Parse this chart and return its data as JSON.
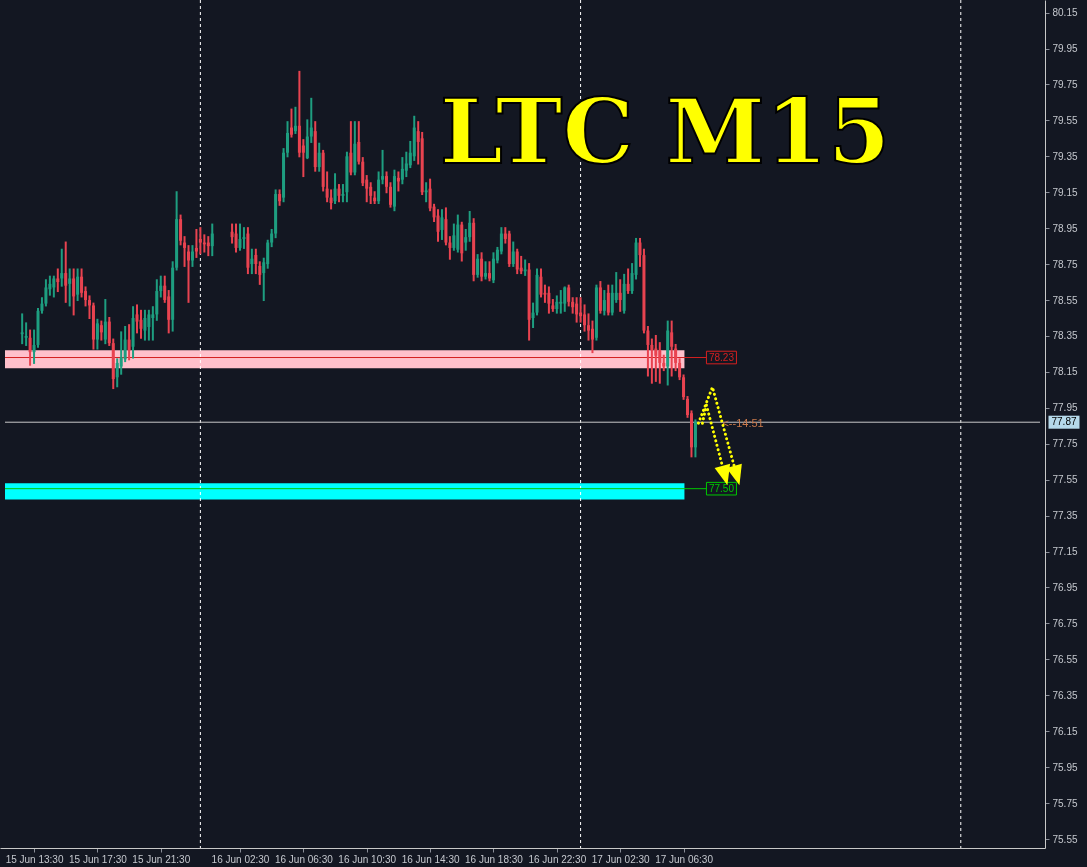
{
  "chart_data": {
    "type": "candlestick",
    "title": "LTC M15",
    "x": [
      "--06-15T12:45",
      "--06-15T13:00",
      "--06-15T13:15",
      "--06-15T13:30",
      "--06-15T13:45",
      "--06-15T14:00",
      "--06-15T14:15",
      "--06-15T14:30",
      "--06-15T14:45",
      "--06-15T15:00",
      "--06-15T15:15",
      "--06-15T15:30",
      "--06-15T15:45",
      "--06-15T16:00",
      "--06-15T16:15",
      "--06-15T16:30",
      "--06-15T16:45",
      "--06-15T17:00",
      "--06-15T17:15",
      "--06-15T17:30",
      "--06-15T17:45",
      "--06-15T18:00",
      "--06-15T18:15",
      "--06-15T18:30",
      "--06-15T18:45",
      "--06-15T19:00",
      "--06-15T19:15",
      "--06-15T19:30",
      "--06-15T19:45",
      "--06-15T20:00",
      "--06-15T20:15",
      "--06-15T20:30",
      "--06-15T20:45",
      "--06-15T21:00",
      "--06-15T21:15",
      "--06-15T21:30",
      "--06-15T21:45",
      "--06-15T22:00",
      "--06-15T22:15",
      "--06-15T22:30",
      "--06-15T22:45",
      "--06-15T23:00",
      "--06-15T23:15",
      "--06-15T23:30",
      "--06-15T23:45",
      "--06-16T00:00",
      "--06-16T00:15",
      "--06-16T00:30",
      "--06-16T00:45",
      "--06-16T02:00",
      "--06-16T02:15",
      "--06-16T02:30",
      "--06-16T02:45",
      "--06-16T03:00",
      "--06-16T03:15",
      "--06-16T03:30",
      "--06-16T03:45",
      "--06-16T04:00",
      "--06-16T04:15",
      "--06-16T04:30",
      "--06-16T04:45",
      "--06-16T05:00",
      "--06-16T05:15",
      "--06-16T05:30",
      "--06-16T05:45",
      "--06-16T06:00",
      "--06-16T06:15",
      "--06-16T06:30",
      "--06-16T06:45",
      "--06-16T07:00",
      "--06-16T07:15",
      "--06-16T07:30",
      "--06-16T07:45",
      "--06-16T08:00",
      "--06-16T08:15",
      "--06-16T08:30",
      "--06-16T08:45",
      "--06-16T09:00",
      "--06-16T09:15",
      "--06-16T09:30",
      "--06-16T09:45",
      "--06-16T10:00",
      "--06-16T10:15",
      "--06-16T10:30",
      "--06-16T10:45",
      "--06-16T11:00",
      "--06-16T11:15",
      "--06-16T11:30",
      "--06-16T11:45",
      "--06-16T12:00",
      "--06-16T12:15",
      "--06-16T12:30",
      "--06-16T12:45",
      "--06-16T13:00",
      "--06-16T13:15",
      "--06-16T13:30",
      "--06-16T13:45",
      "--06-16T14:00",
      "--06-16T14:15",
      "--06-16T14:30",
      "--06-16T14:45",
      "--06-16T15:00",
      "--06-16T15:15",
      "--06-16T15:30",
      "--06-16T15:45",
      "--06-16T16:00",
      "--06-16T16:15",
      "--06-16T16:30",
      "--06-16T16:45",
      "--06-16T17:00",
      "--06-16T17:15",
      "--06-16T17:30",
      "--06-16T17:45",
      "--06-16T18:00",
      "--06-16T18:15",
      "--06-16T18:30",
      "--06-16T18:45",
      "--06-16T19:00",
      "--06-16T19:15",
      "--06-16T19:30",
      "--06-16T19:45",
      "--06-16T20:00",
      "--06-16T20:15",
      "--06-16T20:30",
      "--06-16T20:45",
      "--06-16T21:00",
      "--06-16T21:15",
      "--06-16T21:30",
      "--06-16T21:45",
      "--06-16T22:00",
      "--06-16T22:15",
      "--06-16T22:30",
      "--06-16T22:45",
      "--06-16T23:00",
      "--06-16T23:15",
      "--06-16T23:30",
      "--06-16T23:45",
      "--06-17T00:00",
      "--06-17T00:15",
      "--06-17T00:30",
      "--06-17T00:45",
      "--06-17T01:00",
      "--06-17T01:15",
      "--06-17T01:30",
      "--06-17T01:45",
      "--06-17T02:00",
      "--06-17T02:15",
      "--06-17T02:30",
      "--06-17T02:45",
      "--06-17T03:00",
      "--06-17T03:15",
      "--06-17T03:30",
      "--06-17T03:45",
      "--06-17T04:00",
      "--06-17T04:15",
      "--06-17T04:30",
      "--06-17T04:45",
      "--06-17T05:00",
      "--06-17T05:15",
      "--06-17T05:30",
      "--06-17T05:45",
      "--06-17T06:00",
      "--06-17T06:15",
      "--06-17T06:30",
      "--06-17T06:45",
      "--06-17T07:00",
      "--06-17T07:15"
    ],
    "ohlc": [
      [
        78.36,
        78.47,
        78.31,
        78.37
      ],
      [
        78.34,
        78.42,
        78.3,
        78.35
      ],
      [
        78.34,
        78.38,
        78.19,
        78.26
      ],
      [
        78.26,
        78.38,
        78.2,
        78.3
      ],
      [
        78.3,
        78.5,
        78.29,
        78.49
      ],
      [
        78.49,
        78.56,
        78.48,
        78.53
      ],
      [
        78.53,
        78.66,
        78.52,
        78.62
      ],
      [
        78.61,
        78.68,
        78.58,
        78.64
      ],
      [
        78.62,
        78.68,
        78.57,
        78.67
      ],
      [
        78.67,
        78.72,
        78.6,
        78.65
      ],
      [
        78.67,
        78.83,
        78.63,
        78.7
      ],
      [
        78.7,
        78.87,
        78.54,
        78.63
      ],
      [
        78.64,
        78.72,
        78.52,
        78.67
      ],
      [
        78.67,
        78.72,
        78.47,
        78.57
      ],
      [
        78.58,
        78.72,
        78.55,
        78.68
      ],
      [
        78.68,
        78.72,
        78.57,
        78.59
      ],
      [
        78.6,
        78.62,
        78.52,
        78.55
      ],
      [
        78.55,
        78.57,
        78.45,
        78.52
      ],
      [
        78.52,
        78.53,
        78.28,
        78.33
      ],
      [
        78.33,
        78.44,
        78.28,
        78.42
      ],
      [
        78.41,
        78.43,
        78.33,
        78.37
      ],
      [
        78.33,
        78.55,
        78.31,
        78.43
      ],
      [
        78.43,
        78.45,
        78.3,
        78.31
      ],
      [
        78.31,
        78.33,
        78.06,
        78.11
      ],
      [
        78.12,
        78.22,
        78.07,
        78.2
      ],
      [
        78.18,
        78.37,
        78.14,
        78.23
      ],
      [
        78.22,
        78.4,
        78.21,
        78.33
      ],
      [
        78.33,
        78.41,
        78.22,
        78.27
      ],
      [
        78.29,
        78.51,
        78.23,
        78.45
      ],
      [
        78.47,
        78.52,
        78.37,
        78.43
      ],
      [
        78.44,
        78.49,
        78.34,
        78.39
      ],
      [
        78.38,
        78.49,
        78.33,
        78.45
      ],
      [
        78.4,
        78.49,
        78.33,
        78.47
      ],
      [
        78.45,
        78.51,
        78.33,
        78.47
      ],
      [
        78.47,
        78.66,
        78.44,
        78.6
      ],
      [
        78.6,
        78.68,
        78.57,
        78.63
      ],
      [
        78.63,
        78.68,
        78.54,
        78.55
      ],
      [
        78.57,
        78.6,
        78.37,
        78.44
      ],
      [
        78.44,
        78.76,
        78.38,
        78.73
      ],
      [
        78.73,
        79.15,
        78.72,
        79.0
      ],
      [
        79.0,
        79.02,
        78.86,
        78.88
      ],
      [
        78.87,
        78.9,
        78.74,
        78.84
      ],
      [
        78.82,
        78.85,
        78.54,
        78.77
      ],
      [
        78.77,
        78.85,
        78.74,
        78.82
      ],
      [
        78.84,
        78.94,
        78.79,
        78.82
      ],
      [
        78.89,
        78.95,
        78.81,
        78.87
      ],
      [
        78.87,
        78.91,
        78.82,
        78.86
      ],
      [
        78.87,
        78.9,
        78.8,
        78.85
      ],
      [
        78.85,
        78.97,
        78.8,
        78.92
      ],
      [
        78.93,
        78.97,
        78.87,
        78.9
      ],
      [
        78.92,
        78.97,
        78.82,
        78.84
      ],
      [
        78.84,
        78.97,
        78.83,
        78.89
      ],
      [
        78.89,
        78.95,
        78.84,
        78.9
      ],
      [
        78.92,
        78.95,
        78.7,
        78.73
      ],
      [
        78.75,
        78.83,
        78.7,
        78.78
      ],
      [
        78.8,
        78.83,
        78.7,
        78.75
      ],
      [
        78.74,
        78.76,
        78.64,
        78.69
      ],
      [
        78.7,
        78.78,
        78.55,
        78.76
      ],
      [
        78.75,
        78.88,
        78.73,
        78.87
      ],
      [
        78.87,
        78.94,
        78.85,
        78.92
      ],
      [
        78.92,
        79.16,
        78.9,
        79.14
      ],
      [
        79.14,
        79.16,
        79.08,
        79.1
      ],
      [
        79.12,
        79.39,
        79.1,
        79.37
      ],
      [
        79.37,
        79.54,
        79.35,
        79.48
      ],
      [
        79.51,
        79.61,
        79.46,
        79.47
      ],
      [
        79.49,
        79.62,
        79.48,
        79.52
      ],
      [
        79.52,
        79.82,
        79.35,
        79.37
      ],
      [
        79.41,
        79.44,
        79.24,
        79.37
      ],
      [
        79.34,
        79.55,
        79.34,
        79.46
      ],
      [
        79.46,
        79.67,
        79.43,
        79.51
      ],
      [
        79.49,
        79.54,
        79.27,
        79.29
      ],
      [
        79.29,
        79.42,
        79.27,
        79.37
      ],
      [
        79.37,
        79.38,
        79.16,
        79.18
      ],
      [
        79.17,
        79.26,
        79.1,
        79.12
      ],
      [
        79.12,
        79.16,
        79.06,
        79.09
      ],
      [
        79.1,
        79.25,
        79.09,
        79.17
      ],
      [
        79.17,
        79.19,
        79.1,
        79.13
      ],
      [
        79.13,
        79.19,
        79.1,
        79.14
      ],
      [
        79.15,
        79.37,
        79.1,
        79.35
      ],
      [
        79.37,
        79.54,
        79.25,
        79.26
      ],
      [
        79.26,
        79.54,
        79.25,
        79.42
      ],
      [
        79.43,
        79.54,
        79.31,
        79.32
      ],
      [
        79.32,
        79.34,
        79.19,
        79.2
      ],
      [
        79.22,
        79.24,
        79.1,
        79.17
      ],
      [
        79.18,
        79.2,
        79.09,
        79.13
      ],
      [
        79.12,
        79.15,
        79.09,
        79.1
      ],
      [
        79.1,
        79.26,
        79.09,
        79.22
      ],
      [
        79.22,
        79.38,
        79.2,
        79.24
      ],
      [
        79.24,
        79.26,
        79.15,
        79.18
      ],
      [
        79.18,
        79.2,
        79.07,
        79.08
      ],
      [
        79.07,
        79.27,
        79.05,
        79.24
      ],
      [
        79.23,
        79.26,
        79.16,
        79.21
      ],
      [
        79.22,
        79.34,
        79.2,
        79.28
      ],
      [
        79.27,
        79.37,
        79.24,
        79.31
      ],
      [
        79.3,
        79.43,
        79.29,
        79.37
      ],
      [
        79.35,
        79.57,
        79.33,
        79.51
      ],
      [
        79.49,
        79.54,
        79.31,
        79.43
      ],
      [
        79.45,
        79.48,
        79.14,
        79.15
      ],
      [
        79.15,
        79.2,
        79.1,
        79.16
      ],
      [
        79.17,
        79.22,
        79.05,
        79.06
      ],
      [
        79.07,
        79.08,
        78.99,
        79.01
      ],
      [
        79.02,
        79.05,
        78.88,
        78.93
      ],
      [
        78.94,
        79.05,
        78.89,
        79.01
      ],
      [
        79.0,
        79.06,
        78.86,
        78.87
      ],
      [
        78.87,
        78.9,
        78.78,
        78.84
      ],
      [
        78.84,
        78.97,
        78.83,
        78.91
      ],
      [
        78.83,
        79.02,
        78.82,
        78.97
      ],
      [
        78.97,
        78.98,
        78.77,
        78.81
      ],
      [
        78.87,
        78.94,
        78.83,
        78.9
      ],
      [
        78.9,
        79.04,
        78.88,
        78.98
      ],
      [
        78.98,
        79.0,
        78.66,
        78.69
      ],
      [
        78.69,
        78.8,
        78.68,
        78.78
      ],
      [
        78.78,
        78.81,
        78.66,
        78.68
      ],
      [
        78.68,
        78.76,
        78.67,
        78.7
      ],
      [
        78.7,
        78.76,
        78.66,
        78.67
      ],
      [
        78.66,
        78.81,
        78.65,
        78.78
      ],
      [
        78.77,
        78.84,
        78.76,
        78.83
      ],
      [
        78.82,
        78.95,
        78.81,
        78.92
      ],
      [
        78.92,
        78.95,
        78.87,
        78.89
      ],
      [
        78.92,
        78.93,
        78.74,
        78.75
      ],
      [
        78.75,
        78.87,
        78.74,
        78.82
      ],
      [
        78.82,
        78.83,
        78.7,
        78.72
      ],
      [
        78.73,
        78.79,
        78.7,
        78.71
      ],
      [
        78.71,
        78.77,
        78.69,
        78.72
      ],
      [
        78.72,
        78.75,
        78.33,
        78.44
      ],
      [
        78.45,
        78.53,
        78.4,
        78.48
      ],
      [
        78.48,
        78.72,
        78.47,
        78.69
      ],
      [
        78.68,
        78.72,
        78.57,
        78.58
      ],
      [
        78.59,
        78.63,
        78.54,
        78.58
      ],
      [
        78.59,
        78.62,
        78.48,
        78.53
      ],
      [
        78.52,
        78.55,
        78.49,
        78.5
      ],
      [
        78.5,
        78.57,
        78.48,
        78.54
      ],
      [
        78.53,
        78.6,
        78.48,
        78.54
      ],
      [
        78.53,
        78.62,
        78.49,
        78.62
      ],
      [
        78.62,
        78.63,
        78.52,
        78.54
      ],
      [
        78.54,
        78.56,
        78.48,
        78.51
      ],
      [
        78.53,
        78.56,
        78.43,
        78.47
      ],
      [
        78.48,
        78.56,
        78.43,
        78.46
      ],
      [
        78.47,
        78.52,
        78.38,
        78.41
      ],
      [
        78.41,
        78.47,
        78.33,
        78.38
      ],
      [
        78.39,
        78.43,
        78.26,
        78.33
      ],
      [
        78.34,
        78.63,
        78.33,
        78.62
      ],
      [
        78.62,
        78.65,
        78.48,
        78.49
      ],
      [
        78.49,
        78.6,
        78.47,
        78.55
      ],
      [
        78.59,
        78.63,
        78.47,
        78.48
      ],
      [
        78.48,
        78.63,
        78.47,
        78.59
      ],
      [
        78.55,
        78.7,
        78.54,
        78.59
      ],
      [
        78.59,
        78.66,
        78.49,
        78.55
      ],
      [
        78.49,
        78.69,
        78.48,
        78.64
      ],
      [
        78.64,
        78.72,
        78.59,
        78.6
      ],
      [
        78.6,
        78.75,
        78.59,
        78.7
      ],
      [
        78.69,
        78.89,
        78.67,
        78.87
      ],
      [
        78.87,
        78.89,
        78.74,
        78.8
      ],
      [
        78.8,
        78.83,
        78.37,
        78.38
      ],
      [
        78.38,
        78.4,
        78.13,
        78.3
      ],
      [
        78.3,
        78.33,
        78.09,
        78.27
      ],
      [
        78.28,
        78.35,
        78.1,
        78.24
      ],
      [
        78.27,
        78.31,
        78.09,
        78.2
      ],
      [
        78.2,
        78.24,
        78.16,
        78.18
      ],
      [
        78.18,
        78.43,
        78.08,
        78.38
      ],
      [
        78.37,
        78.43,
        78.13,
        78.29
      ],
      [
        78.28,
        78.3,
        78.16,
        78.2
      ],
      [
        78.2,
        78.22,
        78.11,
        78.12
      ],
      [
        78.12,
        78.13,
        78.0,
        78.01
      ],
      [
        78.0,
        78.01,
        77.9,
        77.91
      ],
      [
        77.92,
        77.93,
        77.68,
        77.73
      ],
      [
        77.73,
        77.88,
        77.68,
        77.87
      ]
    ],
    "colors": [
      "#1e9e80",
      "#1e9e80",
      "#e84350",
      "#1e9e80",
      "#1e9e80",
      "#1e9e80",
      "#1e9e80",
      "#1e9e80",
      "#1e9e80",
      "#e84350",
      "#1e9e80",
      "#e84350",
      "#1e9e80",
      "#e84350",
      "#1e9e80",
      "#e84350",
      "#e84350",
      "#e84350",
      "#e84350",
      "#1e9e80",
      "#e84350",
      "#1e9e80",
      "#e84350",
      "#e84350",
      "#1e9e80",
      "#1e9e80",
      "#1e9e80",
      "#e84350",
      "#1e9e80",
      "#e84350",
      "#e84350",
      "#1e9e80",
      "#1e9e80",
      "#1e9e80",
      "#1e9e80",
      "#1e9e80",
      "#e84350",
      "#e84350",
      "#1e9e80",
      "#1e9e80",
      "#e84350",
      "#e84350",
      "#e84350",
      "#1e9e80",
      "#e84350",
      "#e84350",
      "#e84350",
      "#e84350",
      "#1e9e80",
      "#e84350",
      "#e84350",
      "#1e9e80",
      "#1e9e80",
      "#e84350",
      "#1e9e80",
      "#e84350",
      "#e84350",
      "#1e9e80",
      "#1e9e80",
      "#1e9e80",
      "#1e9e80",
      "#e84350",
      "#1e9e80",
      "#1e9e80",
      "#e84350",
      "#1e9e80",
      "#e84350",
      "#e84350",
      "#1e9e80",
      "#1e9e80",
      "#e84350",
      "#1e9e80",
      "#e84350",
      "#e84350",
      "#e84350",
      "#1e9e80",
      "#e84350",
      "#1e9e80",
      "#1e9e80",
      "#e84350",
      "#1e9e80",
      "#e84350",
      "#e84350",
      "#e84350",
      "#e84350",
      "#e84350",
      "#1e9e80",
      "#1e9e80",
      "#e84350",
      "#e84350",
      "#1e9e80",
      "#e84350",
      "#1e9e80",
      "#1e9e80",
      "#1e9e80",
      "#1e9e80",
      "#e84350",
      "#e84350",
      "#1e9e80",
      "#e84350",
      "#e84350",
      "#e84350",
      "#1e9e80",
      "#e84350",
      "#e84350",
      "#1e9e80",
      "#1e9e80",
      "#e84350",
      "#1e9e80",
      "#1e9e80",
      "#e84350",
      "#1e9e80",
      "#e84350",
      "#1e9e80",
      "#e84350",
      "#1e9e80",
      "#1e9e80",
      "#1e9e80",
      "#e84350",
      "#e84350",
      "#1e9e80",
      "#e84350",
      "#e84350",
      "#1e9e80",
      "#e84350",
      "#1e9e80",
      "#1e9e80",
      "#e84350",
      "#e84350",
      "#e84350",
      "#e84350",
      "#1e9e80",
      "#1e9e80",
      "#1e9e80",
      "#e84350",
      "#e84350",
      "#e84350",
      "#e84350",
      "#e84350",
      "#e84350",
      "#e84350",
      "#1e9e80",
      "#e84350",
      "#1e9e80",
      "#e84350",
      "#1e9e80",
      "#1e9e80",
      "#e84350",
      "#1e9e80",
      "#e84350",
      "#1e9e80",
      "#1e9e80",
      "#e84350",
      "#e84350",
      "#e84350",
      "#e84350",
      "#e84350",
      "#e84350",
      "#e84350",
      "#1e9e80",
      "#e84350",
      "#e84350",
      "#e84350",
      "#e84350",
      "#e84350",
      "#e84350",
      "#1e9e80"
    ],
    "xlim": [
      "--06-15T11:40",
      "--06-18T05:00"
    ],
    "xticks": [
      {
        "value": "--06-15T13:30",
        "label": "15 Jun 13:30"
      },
      {
        "value": "--06-15T17:30",
        "label": "15 Jun 17:30"
      },
      {
        "value": "--06-15T21:30",
        "label": "15 Jun 21:30"
      },
      {
        "value": "--06-16T02:30",
        "label": "16 Jun 02:30"
      },
      {
        "value": "--06-16T06:30",
        "label": "16 Jun 06:30"
      },
      {
        "value": "--06-16T10:30",
        "label": "16 Jun 10:30"
      },
      {
        "value": "--06-16T14:30",
        "label": "16 Jun 14:30"
      },
      {
        "value": "--06-16T18:30",
        "label": "16 Jun 18:30"
      },
      {
        "value": "--06-16T22:30",
        "label": "16 Jun 22:30"
      },
      {
        "value": "--06-17T02:30",
        "label": "17 Jun 02:30"
      },
      {
        "value": "--06-17T06:30",
        "label": "17 Jun 06:30"
      }
    ],
    "ylim": [
      75.5,
      80.22
    ],
    "yticks": [
      75.55,
      75.75,
      75.95,
      76.15,
      76.35,
      76.55,
      76.75,
      76.95,
      77.15,
      77.35,
      77.55,
      77.75,
      77.95,
      78.15,
      78.35,
      78.55,
      78.75,
      78.95,
      79.15,
      79.35,
      79.55,
      79.75,
      79.95,
      80.15
    ],
    "bands": [
      {
        "axis": "y",
        "from": 78.17,
        "to": 78.27,
        "color": "#ffc0cb"
      },
      {
        "axis": "y",
        "from": 77.44,
        "to": 77.53,
        "color": "#00ffff"
      }
    ],
    "ref_lines": [
      {
        "axis": "x",
        "value": "--06-16T00:00",
        "line_style": "dashed",
        "color": "#ffffff"
      },
      {
        "axis": "x",
        "value": "--06-17T00:00",
        "line_style": "dashed",
        "color": "#ffffff"
      },
      {
        "axis": "x",
        "value": "--06-18T00:00",
        "line_style": "dashed",
        "color": "#ffffff"
      },
      {
        "axis": "y",
        "value": 78.23,
        "label": "78.23",
        "color": "#d42020"
      },
      {
        "axis": "y",
        "value": 77.5,
        "label": "77.50",
        "color": "#00c800"
      },
      {
        "axis": "y",
        "value": 77.87,
        "label": "77.87",
        "color": "#c8c8c8"
      }
    ],
    "annotations": [
      {
        "text": "<--14:51",
        "x": "--06-17T07:15",
        "y": 77.87
      }
    ]
  }
}
